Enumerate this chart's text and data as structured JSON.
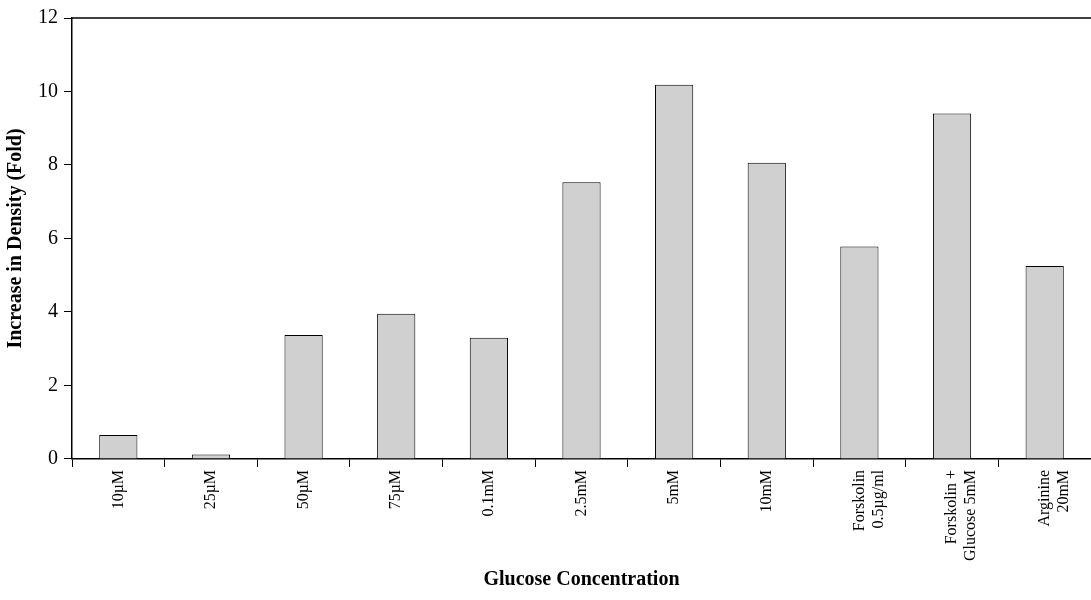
{
  "chart_data": {
    "type": "bar",
    "xlabel": "Glucose Concentration",
    "ylabel": "Increase in Density (Fold)",
    "categories": [
      "10µM",
      "25µM",
      "50µM",
      "75µM",
      "0.1mM",
      "2.5mM",
      "5mM",
      "10mM",
      "Forskolin\n0.5µg/ml",
      "Forskolin +\nGlucose 5mM",
      "Arginine\n20mM"
    ],
    "values": [
      0.65,
      0.12,
      3.37,
      3.95,
      3.3,
      7.53,
      10.18,
      8.06,
      5.78,
      9.4,
      5.25
    ],
    "color": "#d0d0d0",
    "ylim": [
      0,
      12
    ],
    "yticks": [
      0,
      2,
      4,
      6,
      8,
      10,
      12
    ],
    "grid": false,
    "legend": false
  }
}
